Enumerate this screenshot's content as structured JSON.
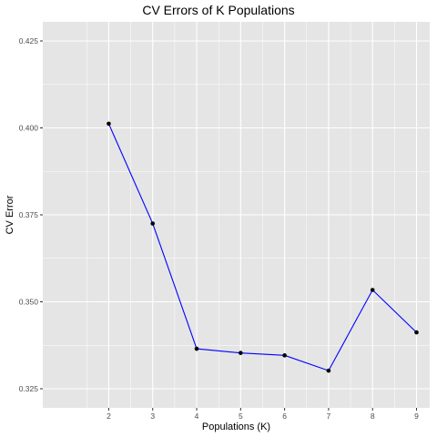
{
  "chart_data": {
    "type": "line",
    "title": "CV Errors of K Populations",
    "xlabel": "Populations (K)",
    "ylabel": "CV Error",
    "x": [
      2,
      3,
      4,
      5,
      6,
      7,
      8,
      9
    ],
    "y": [
      0.4012,
      0.3725,
      0.3365,
      0.3353,
      0.3346,
      0.3302,
      0.3534,
      0.3412
    ],
    "x_ticks": [
      2,
      3,
      4,
      5,
      6,
      7,
      8,
      9
    ],
    "y_ticks": [
      0.325,
      0.35,
      0.375,
      0.4,
      0.425
    ],
    "y_tick_labels": [
      "0.325",
      "0.350",
      "0.375",
      "0.400",
      "0.425"
    ],
    "xlim": [
      0.5,
      9.3
    ],
    "ylim": [
      0.3195,
      0.4305
    ],
    "line_color": "#0000ff",
    "point_color": "#000000",
    "panel_background": "#e5e5e5",
    "grid_color": "#ffffff",
    "grid": true
  }
}
